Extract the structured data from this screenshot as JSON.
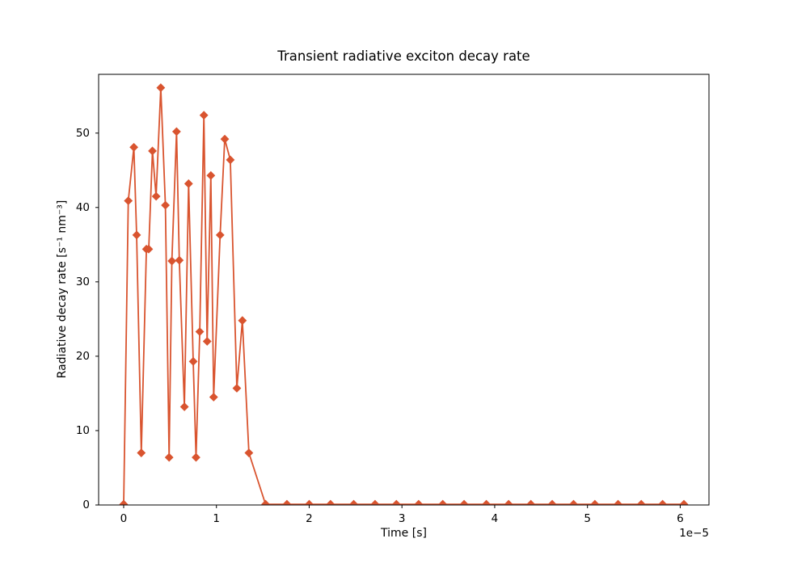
{
  "title": "Transient radiative exciton decay rate",
  "x_axis": {
    "label": "Time [s]",
    "offset_label": "1e−5",
    "ticks": [
      0,
      1,
      2,
      3,
      4,
      5,
      6
    ]
  },
  "y_axis": {
    "label": "Radiative decay rate [s⁻¹ nm⁻³]",
    "ticks": [
      0,
      10,
      20,
      30,
      40,
      50
    ]
  },
  "chart_data": {
    "type": "line",
    "title": "Transient radiative exciton decay rate",
    "xlabel": "Time [s]",
    "ylabel": "Radiative decay rate [s⁻¹ nm⁻³]",
    "x_unit_multiplier": "1e-5",
    "marker": "diamond",
    "line_color": "#d9542f",
    "grid": false,
    "legend": "none",
    "xlim": [
      -0.27,
      6.31
    ],
    "ylim": [
      0,
      57.9
    ],
    "x": [
      0.0,
      0.05,
      0.11,
      0.14,
      0.19,
      0.245,
      0.27,
      0.31,
      0.35,
      0.4,
      0.45,
      0.49,
      0.52,
      0.57,
      0.6,
      0.655,
      0.7,
      0.75,
      0.78,
      0.82,
      0.865,
      0.9,
      0.94,
      0.97,
      1.04,
      1.09,
      1.15,
      1.22,
      1.28,
      1.35,
      1.53,
      1.76,
      2.0,
      2.23,
      2.48,
      2.71,
      2.94,
      3.18,
      3.44,
      3.67,
      3.91,
      4.15,
      4.39,
      4.62,
      4.85,
      5.08,
      5.33,
      5.58,
      5.81,
      6.04
    ],
    "y": [
      0.1,
      40.9,
      48.1,
      36.3,
      7.0,
      34.4,
      34.4,
      47.6,
      41.5,
      56.1,
      40.3,
      6.4,
      32.8,
      50.2,
      32.9,
      13.2,
      43.2,
      19.3,
      6.4,
      23.3,
      52.4,
      22.0,
      44.3,
      14.5,
      36.3,
      49.2,
      46.4,
      15.7,
      24.8,
      7.0,
      0.1,
      0.1,
      0.1,
      0.1,
      0.1,
      0.1,
      0.1,
      0.1,
      0.1,
      0.1,
      0.1,
      0.1,
      0.1,
      0.1,
      0.1,
      0.1,
      0.1,
      0.1,
      0.1,
      0.1
    ]
  }
}
